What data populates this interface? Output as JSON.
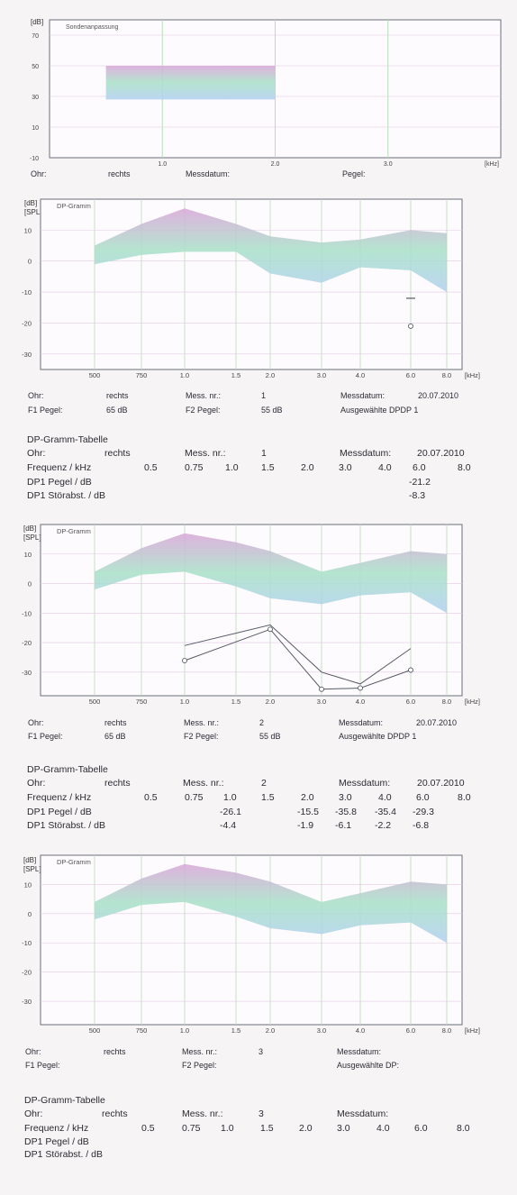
{
  "colors": {
    "plot_line": "#6b6f7a",
    "grid": "#b9dcb9",
    "band_top": "#d8a6d8",
    "band_mid": "#a8e0c8",
    "band_low": "#b0d0f0",
    "curve": "#555a66"
  },
  "chart_data": [
    {
      "type": "area",
      "title": "Sondenanpassung",
      "ylabel": "[dB]",
      "ylim": [
        -10,
        80
      ],
      "yticks": [
        "70",
        "50",
        "30",
        "10",
        "-10"
      ],
      "xticks": [
        "1.0",
        "2.0",
        "3.0"
      ],
      "xunit": "[kHz]",
      "band": {
        "x": [
          0.5,
          2.0
        ],
        "low": 28,
        "high": 50
      },
      "info": {
        "ohr_label": "Ohr:",
        "ohr": "rechts",
        "messdatum_label": "Messdatum:",
        "pegel_label": "Pegel:"
      }
    },
    {
      "type": "area",
      "title": "DP-Gramm",
      "ylabel": "[dB]",
      "ylabel2": "[SPL]",
      "ylim": [
        -35,
        20
      ],
      "yticks": [
        "10",
        "0",
        "-10",
        "-20",
        "-30"
      ],
      "xticks": [
        "500",
        "750",
        "1.0",
        "1.5",
        "2.0",
        "3.0",
        "4.0",
        "6.0",
        "8.0"
      ],
      "xunit": "[kHz]",
      "band_x": [
        0.5,
        0.75,
        1.0,
        1.5,
        2.0,
        3.0,
        4.0,
        6.0,
        8.0
      ],
      "band_upper": [
        5,
        12,
        17,
        12,
        8,
        6,
        7,
        10,
        9
      ],
      "band_lower": [
        -1,
        2,
        3,
        3,
        -4,
        -7,
        -2,
        -3,
        -10
      ],
      "series": [],
      "points": [
        {
          "x": 6.0,
          "y": -12,
          "kind": "bar"
        },
        {
          "x": 6.0,
          "y": -21,
          "kind": "circle"
        }
      ],
      "info": {
        "ohr_label": "Ohr:",
        "ohr": "rechts",
        "messnr_label": "Mess. nr.:",
        "messnr": "1",
        "messdatum_label": "Messdatum:",
        "messdatum": "20.07.2010",
        "f1_label": "F1 Pegel:",
        "f1": "65 dB",
        "f2_label": "F2 Pegel:",
        "f2": "55 dB",
        "ausgewaehlt": "Ausgewählte DPDP 1"
      },
      "table": {
        "title": "DP-Gramm-Tabelle",
        "ohr_label": "Ohr:",
        "ohr": "rechts",
        "messnr_label": "Mess. nr.:",
        "messnr": "1",
        "messdatum_label": "Messdatum:",
        "messdatum": "20.07.2010",
        "freq_label": "Frequenz / kHz",
        "freqs": [
          "0.5",
          "0.75",
          "1.0",
          "1.5",
          "2.0",
          "3.0",
          "4.0",
          "6.0",
          "8.0"
        ],
        "dp1_label": "DP1 Pegel / dB",
        "dp1": [
          "",
          "",
          "",
          "",
          "",
          "",
          "",
          "-21.2",
          ""
        ],
        "snr_label": "DP1 Störabst. / dB",
        "snr": [
          "",
          "",
          "",
          "",
          "",
          "",
          "",
          "-8.3",
          ""
        ]
      }
    },
    {
      "type": "line",
      "title": "DP-Gramm",
      "ylabel": "[dB]",
      "ylabel2": "[SPL]",
      "ylim": [
        -38,
        20
      ],
      "yticks": [
        "10",
        "0",
        "-10",
        "-20",
        "-30"
      ],
      "xticks": [
        "500",
        "750",
        "1.0",
        "1.5",
        "2.0",
        "3.0",
        "4.0",
        "6.0",
        "8.0"
      ],
      "xunit": "[kHz]",
      "band_x": [
        0.5,
        0.75,
        1.0,
        1.5,
        2.0,
        3.0,
        4.0,
        6.0,
        8.0
      ],
      "band_upper": [
        4,
        12,
        17,
        14,
        11,
        4,
        7,
        11,
        10
      ],
      "band_lower": [
        -2,
        3,
        4,
        -1,
        -5,
        -7,
        -4,
        -3,
        -10
      ],
      "series": [
        {
          "x": [
            1.0,
            2.0,
            3.0,
            4.0,
            6.0
          ],
          "y": [
            -21,
            -14,
            -30,
            -34,
            -22
          ],
          "marker": "none"
        },
        {
          "x": [
            1.0,
            2.0,
            3.0,
            4.0,
            6.0
          ],
          "y": [
            -26.1,
            -15.5,
            -35.8,
            -35.4,
            -29.3
          ],
          "marker": "circle"
        }
      ],
      "info": {
        "ohr_label": "Ohr:",
        "ohr": "rechts",
        "messnr_label": "Mess. nr.:",
        "messnr": "2",
        "messdatum_label": "Messdatum:",
        "messdatum": "20.07.2010",
        "f1_label": "F1 Pegel:",
        "f1": "65 dB",
        "f2_label": "F2 Pegel:",
        "f2": "55 dB",
        "ausgewaehlt": "Ausgewählte DPDP 1"
      },
      "table": {
        "title": "DP-Gramm-Tabelle",
        "ohr_label": "Ohr:",
        "ohr": "rechts",
        "messnr_label": "Mess. nr.:",
        "messnr": "2",
        "messdatum_label": "Messdatum:",
        "messdatum": "20.07.2010",
        "freq_label": "Frequenz / kHz",
        "freqs": [
          "0.5",
          "0.75",
          "1.0",
          "1.5",
          "2.0",
          "3.0",
          "4.0",
          "6.0",
          "8.0"
        ],
        "dp1_label": "DP1 Pegel / dB",
        "dp1": [
          "",
          "",
          "-26.1",
          "",
          "-15.5",
          "-35.8",
          "-35.4",
          "-29.3",
          ""
        ],
        "snr_label": "DP1 Störabst. / dB",
        "snr": [
          "",
          "",
          "-4.4",
          "",
          "-1.9",
          "-6.1",
          "-2.2",
          "-6.8",
          ""
        ]
      }
    },
    {
      "type": "area",
      "title": "DP-Gramm",
      "ylabel": "[dB]",
      "ylabel2": "[SPL]",
      "ylim": [
        -38,
        20
      ],
      "yticks": [
        "10",
        "0",
        "-10",
        "-20",
        "-30"
      ],
      "xticks": [
        "500",
        "750",
        "1.0",
        "1.5",
        "2.0",
        "3.0",
        "4.0",
        "6.0",
        "8.0"
      ],
      "xunit": "[kHz]",
      "band_x": [
        0.5,
        0.75,
        1.0,
        1.5,
        2.0,
        3.0,
        4.0,
        6.0,
        8.0
      ],
      "band_upper": [
        4,
        12,
        17,
        14,
        11,
        4,
        7,
        11,
        10
      ],
      "band_lower": [
        -2,
        3,
        4,
        -1,
        -5,
        -7,
        -4,
        -3,
        -10
      ],
      "series": [],
      "info": {
        "ohr_label": "Ohr:",
        "ohr": "rechts",
        "messnr_label": "Mess. nr.:",
        "messnr": "3",
        "messdatum_label": "Messdatum:",
        "messdatum": "",
        "f1_label": "F1 Pegel:",
        "f1": "",
        "f2_label": "F2 Pegel:",
        "f2": "",
        "ausgewaehlt": "Ausgewählte DP:"
      },
      "table": {
        "title": "DP-Gramm-Tabelle",
        "ohr_label": "Ohr:",
        "ohr": "rechts",
        "messnr_label": "Mess. nr.:",
        "messnr": "3",
        "messdatum_label": "Messdatum:",
        "messdatum": "",
        "freq_label": "Frequenz / kHz",
        "freqs": [
          "0.5",
          "0.75",
          "1.0",
          "1.5",
          "2.0",
          "3.0",
          "4.0",
          "6.0",
          "8.0"
        ],
        "dp1_label": "DP1 Pegel / dB",
        "dp1": [
          "",
          "",
          "",
          "",
          "",
          "",
          "",
          "",
          ""
        ],
        "snr_label": "DP1 Störabst. / dB",
        "snr": [
          "",
          "",
          "",
          "",
          "",
          "",
          "",
          "",
          ""
        ]
      }
    }
  ]
}
